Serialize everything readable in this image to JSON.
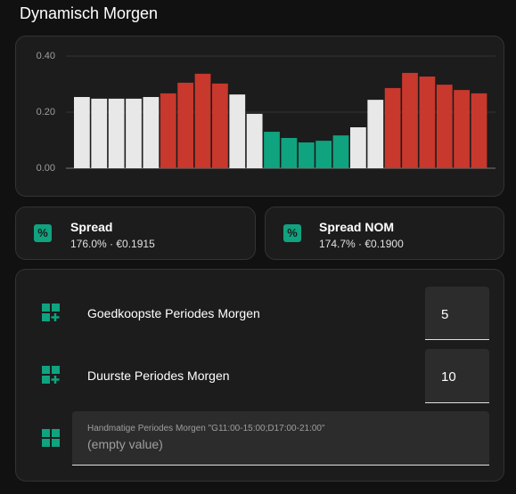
{
  "title": "Dynamisch Morgen",
  "chart_data": {
    "type": "bar",
    "values": [
      0.254,
      0.248,
      0.248,
      0.248,
      0.254,
      0.267,
      0.305,
      0.337,
      0.302,
      0.263,
      0.194,
      0.13,
      0.108,
      0.092,
      0.098,
      0.117,
      0.146,
      0.244,
      0.286,
      0.34,
      0.327,
      0.298,
      0.279,
      0.267
    ],
    "colors": [
      "#e8e8e8",
      "#e8e8e8",
      "#e8e8e8",
      "#e8e8e8",
      "#e8e8e8",
      "#c8382c",
      "#c8382c",
      "#c8382c",
      "#c8382c",
      "#e8e8e8",
      "#e8e8e8",
      "#0fa37f",
      "#0fa37f",
      "#0fa37f",
      "#0fa37f",
      "#0fa37f",
      "#e8e8e8",
      "#e8e8e8",
      "#c8382c",
      "#c8382c",
      "#c8382c",
      "#c8382c",
      "#c8382c",
      "#c8382c"
    ],
    "ylim": [
      0,
      0.4
    ],
    "yticks": [
      {
        "value": 0,
        "label": "0.00"
      },
      {
        "value": 0.2,
        "label": "0.20"
      },
      {
        "value": 0.4,
        "label": "0.40"
      }
    ],
    "grid": true
  },
  "sensors": [
    {
      "name": "Spread",
      "state": "176.0% · €0.1915"
    },
    {
      "name": "Spread NOM",
      "state": "174.7% · €0.1900"
    }
  ],
  "inputs": [
    {
      "label": "Goedkoopste Periodes Morgen",
      "value": "5"
    },
    {
      "label": "Duurste Periodes Morgen",
      "value": "10"
    },
    {
      "label": "Handmatige Periodes Morgen \"G11:00-15:00;D17:00-21:00\"",
      "value": "(empty value)"
    }
  ]
}
